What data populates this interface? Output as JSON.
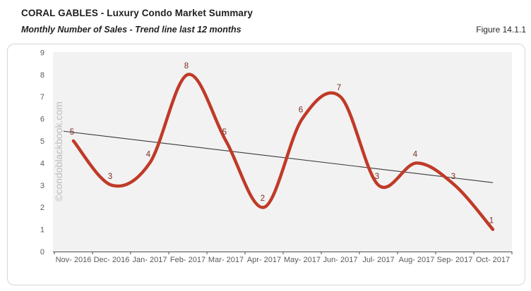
{
  "header": {
    "title": "CORAL GABLES - Luxury Condo Market Summary",
    "subtitle": "Monthly Number of Sales - Trend line last 12 months",
    "figure_label": "Figure 14.1.1"
  },
  "watermark": "©condoblackbook.com",
  "chart_data": {
    "type": "line",
    "title": "Monthly Number of Sales - Trend line last 12 months",
    "categories": [
      "Nov- 2016",
      "Dec- 2016",
      "Jan- 2017",
      "Feb- 2017",
      "Mar- 2017",
      "Apr- 2017",
      "May- 2017",
      "Jun- 2017",
      "Jul- 2017",
      "Aug- 2017",
      "Sep- 2017",
      "Oct- 2017"
    ],
    "values": [
      5,
      3,
      4,
      8,
      5,
      2,
      6,
      7,
      3,
      4,
      3,
      1
    ],
    "xlabel": "",
    "ylabel": "",
    "ylim": [
      0,
      9
    ],
    "yticks": [
      0,
      1,
      2,
      3,
      4,
      5,
      6,
      7,
      8,
      9
    ],
    "grid": false,
    "legend": "none",
    "smoothed": true,
    "data_labels": true,
    "trendline": {
      "type": "linear",
      "start_value": 5.39,
      "end_value": 3.12
    },
    "colors": {
      "line": "#c03a28",
      "data_label": "#7e2d23",
      "trend": "#3a3a3a",
      "plot_bg": "#f2f2f2",
      "axis": "#4d4d4d",
      "tick_label": "#595959",
      "watermark": "#bdbdbd"
    }
  }
}
